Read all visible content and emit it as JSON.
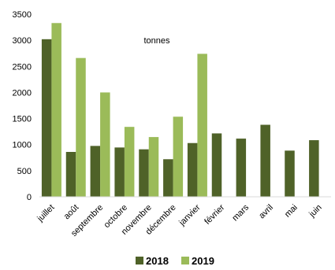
{
  "chart_data": {
    "type": "bar",
    "unit_label": "tonnes",
    "categories": [
      "juillet",
      "août",
      "septembre",
      "octobre",
      "novembre",
      "décembre",
      "janvier",
      "février",
      "mars",
      "avril",
      "mai",
      "juin"
    ],
    "series": [
      {
        "name": "2018",
        "color": "#4f6228",
        "values": [
          3020,
          860,
          975,
          945,
          910,
          720,
          1030,
          1215,
          1115,
          1380,
          885,
          1085
        ]
      },
      {
        "name": "2019",
        "color": "#9bbb59",
        "values": [
          3330,
          2660,
          2000,
          1340,
          1145,
          1535,
          2740,
          null,
          null,
          null,
          null,
          null
        ]
      }
    ],
    "ylim": [
      0,
      3500
    ],
    "yticks": [
      0,
      500,
      1000,
      1500,
      2000,
      2500,
      3000,
      3500
    ],
    "grid": false,
    "legend_position": "bottom"
  }
}
